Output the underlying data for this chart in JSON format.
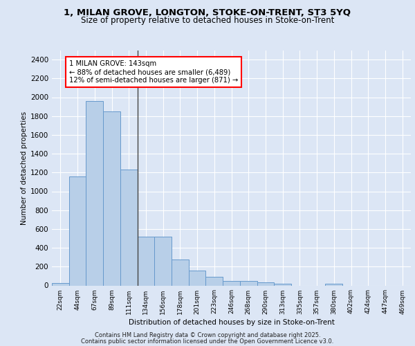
{
  "title_line1": "1, MILAN GROVE, LONGTON, STOKE-ON-TRENT, ST3 5YQ",
  "title_line2": "Size of property relative to detached houses in Stoke-on-Trent",
  "xlabel": "Distribution of detached houses by size in Stoke-on-Trent",
  "ylabel": "Number of detached properties",
  "categories": [
    "22sqm",
    "44sqm",
    "67sqm",
    "89sqm",
    "111sqm",
    "134sqm",
    "156sqm",
    "178sqm",
    "201sqm",
    "223sqm",
    "246sqm",
    "268sqm",
    "290sqm",
    "313sqm",
    "335sqm",
    "357sqm",
    "380sqm",
    "402sqm",
    "424sqm",
    "447sqm",
    "469sqm"
  ],
  "values": [
    25,
    1160,
    1960,
    1850,
    1230,
    515,
    515,
    275,
    155,
    90,
    50,
    45,
    30,
    20,
    0,
    0,
    15,
    0,
    0,
    0,
    0
  ],
  "bar_color": "#b8cfe8",
  "bar_edge_color": "#6699cc",
  "annotation_text": "1 MILAN GROVE: 143sqm\n← 88% of detached houses are smaller (6,489)\n12% of semi-detached houses are larger (871) →",
  "annotation_box_color": "white",
  "annotation_box_edge_color": "red",
  "vline_index": 4.5,
  "ylim": [
    0,
    2500
  ],
  "yticks": [
    0,
    200,
    400,
    600,
    800,
    1000,
    1200,
    1400,
    1600,
    1800,
    2000,
    2200,
    2400
  ],
  "background_color": "#dce6f5",
  "plot_bg_color": "#dce6f5",
  "grid_color": "white",
  "footer_line1": "Contains HM Land Registry data © Crown copyright and database right 2025.",
  "footer_line2": "Contains public sector information licensed under the Open Government Licence v3.0."
}
